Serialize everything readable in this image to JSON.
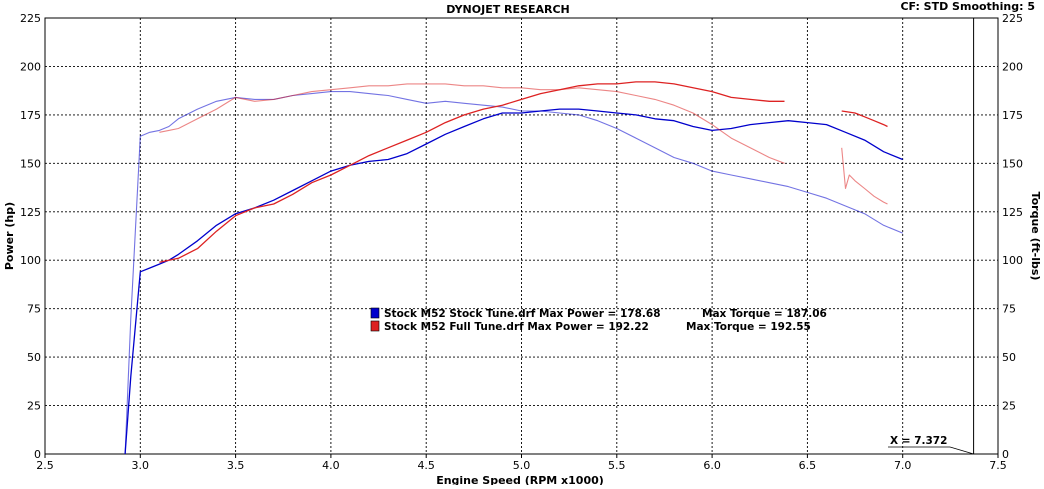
{
  "header": {
    "title": "DYNOJET RESEARCH",
    "settings": "CF: STD  Smoothing: 5"
  },
  "chart_data": {
    "type": "line",
    "title": "DYNOJET RESEARCH",
    "xlabel": "Engine Speed (RPM x1000)",
    "ylabel": "Power (hp)",
    "y2label": "Torque (ft-lbs)",
    "xlim": [
      2.5,
      7.5
    ],
    "ylim": [
      0,
      225
    ],
    "y2lim": [
      0,
      225
    ],
    "x_ticks": [
      "2.5",
      "3.0",
      "3.5",
      "4.0",
      "4.5",
      "5.0",
      "5.5",
      "6.0",
      "6.5",
      "7.0",
      "7.5"
    ],
    "y_ticks": [
      "0",
      "25",
      "50",
      "75",
      "100",
      "125",
      "150",
      "175",
      "200",
      "225"
    ],
    "grid": true,
    "legend_position": "center",
    "marker": {
      "label": "X = 7.372",
      "x": 7.372
    },
    "series": [
      {
        "name": "Stock M52 Stock Tune.drf",
        "color": "#0000cc",
        "power": {
          "x": [
            2.92,
            2.95,
            3.0,
            3.05,
            3.1,
            3.15,
            3.2,
            3.3,
            3.4,
            3.5,
            3.6,
            3.7,
            3.8,
            3.9,
            4.0,
            4.1,
            4.2,
            4.3,
            4.4,
            4.5,
            4.6,
            4.7,
            4.8,
            4.9,
            5.0,
            5.1,
            5.2,
            5.3,
            5.4,
            5.5,
            5.6,
            5.7,
            5.8,
            5.9,
            6.0,
            6.1,
            6.2,
            6.3,
            6.4,
            6.5,
            6.6,
            6.7,
            6.8,
            6.9,
            7.0
          ],
          "y": [
            0,
            40,
            94,
            96,
            98,
            100,
            103,
            110,
            118,
            124,
            127,
            131,
            136,
            141,
            146,
            149,
            151,
            152,
            155,
            160,
            165,
            169,
            173,
            176,
            176,
            177,
            178,
            178,
            177,
            176,
            175,
            173,
            172,
            169,
            167,
            168,
            170,
            171,
            172,
            171,
            170,
            166,
            162,
            156,
            152
          ]
        },
        "torque": {
          "x": [
            2.92,
            2.95,
            3.0,
            3.05,
            3.1,
            3.15,
            3.2,
            3.3,
            3.4,
            3.5,
            3.6,
            3.7,
            3.8,
            3.9,
            4.0,
            4.1,
            4.2,
            4.3,
            4.4,
            4.5,
            4.6,
            4.7,
            4.8,
            4.9,
            5.0,
            5.1,
            5.2,
            5.3,
            5.4,
            5.5,
            5.6,
            5.7,
            5.8,
            5.9,
            6.0,
            6.1,
            6.2,
            6.3,
            6.4,
            6.5,
            6.6,
            6.7,
            6.8,
            6.9,
            7.0
          ],
          "y": [
            0,
            70,
            164,
            166,
            167,
            169,
            173,
            178,
            182,
            184,
            183,
            183,
            185,
            186,
            187,
            187,
            186,
            185,
            183,
            181,
            182,
            181,
            180,
            179,
            177,
            177,
            176,
            175,
            172,
            168,
            163,
            158,
            153,
            150,
            146,
            144,
            142,
            140,
            138,
            135,
            132,
            128,
            124,
            118,
            114
          ]
        }
      },
      {
        "name": "Stock M52 Full Tune.drf",
        "color": "#dd2222",
        "power": {
          "x": [
            3.1,
            3.15,
            3.2,
            3.3,
            3.4,
            3.5,
            3.6,
            3.7,
            3.8,
            3.9,
            4.0,
            4.1,
            4.2,
            4.3,
            4.4,
            4.5,
            4.6,
            4.7,
            4.8,
            4.9,
            5.0,
            5.1,
            5.2,
            5.3,
            5.4,
            5.5,
            5.6,
            5.7,
            5.8,
            5.9,
            6.0,
            6.1,
            6.2,
            6.3,
            6.38
          ],
          "y": [
            99,
            100,
            101,
            106,
            115,
            123,
            127,
            129,
            134,
            140,
            144,
            149,
            154,
            158,
            162,
            166,
            171,
            175,
            178,
            180,
            183,
            186,
            188,
            190,
            191,
            191,
            192,
            192,
            191,
            189,
            187,
            184,
            183,
            182,
            182
          ],
          "x2": [
            6.68,
            6.75,
            6.8,
            6.85,
            6.9,
            6.92
          ],
          "y2": [
            177,
            176,
            174,
            172,
            170,
            169
          ]
        },
        "torque": {
          "x": [
            3.1,
            3.15,
            3.2,
            3.3,
            3.4,
            3.5,
            3.6,
            3.7,
            3.8,
            3.9,
            4.0,
            4.1,
            4.2,
            4.3,
            4.4,
            4.5,
            4.6,
            4.7,
            4.8,
            4.9,
            5.0,
            5.1,
            5.2,
            5.3,
            5.4,
            5.5,
            5.6,
            5.7,
            5.8,
            5.9,
            6.0,
            6.1,
            6.2,
            6.3,
            6.38
          ],
          "y": [
            166,
            167,
            168,
            173,
            178,
            184,
            182,
            183,
            185,
            187,
            188,
            189,
            190,
            190,
            191,
            191,
            191,
            190,
            190,
            189,
            189,
            188,
            188,
            189,
            188,
            187,
            185,
            183,
            180,
            176,
            170,
            163,
            158,
            153,
            150
          ],
          "x2": [
            6.68,
            6.7,
            6.72,
            6.75,
            6.8,
            6.85,
            6.9,
            6.92
          ],
          "y2": [
            158,
            137,
            144,
            141,
            137,
            133,
            130,
            129
          ]
        }
      }
    ],
    "legend": [
      {
        "color": "#0000cc",
        "text": "Stock M52 Stock Tune.drf Max Power = 178.68",
        "torque_text": "Max Torque = 187.06"
      },
      {
        "color": "#dd2222",
        "text": "Stock M52 Full Tune.drf Max Power = 192.22",
        "torque_text": "Max Torque = 192.55"
      }
    ]
  }
}
